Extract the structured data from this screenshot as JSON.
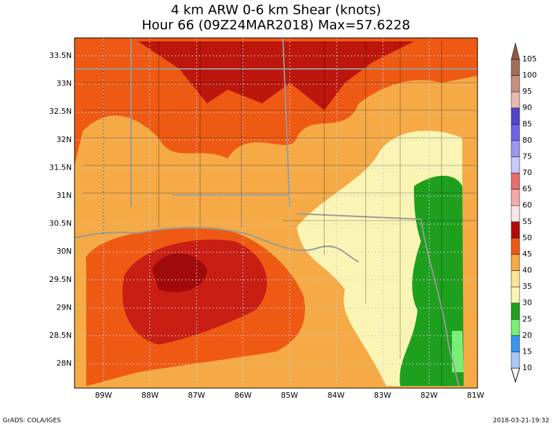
{
  "title": {
    "line1": "4 km ARW 0-6 km Shear (knots)",
    "line2": "Hour 66 (09Z24MAR2018) Max=57.6228"
  },
  "latitude_labels": [
    "33.5N",
    "33N",
    "32.5N",
    "32N",
    "31.5N",
    "31N",
    "30.5N",
    "30N",
    "29.5N",
    "29N",
    "28.5N",
    "28N"
  ],
  "longitude_labels": [
    "89W",
    "88W",
    "87W",
    "86W",
    "85W",
    "84W",
    "83W",
    "82W",
    "81W"
  ],
  "colorbar": {
    "levels": [
      10,
      15,
      20,
      25,
      30,
      35,
      40,
      45,
      50,
      55,
      60,
      65,
      70,
      75,
      80,
      85,
      90,
      95,
      100,
      105
    ],
    "colors": [
      "#aac8f5",
      "#3c96f0",
      "#78f078",
      "#1ea01e",
      "#faf5b4",
      "#fae296",
      "#f5aa46",
      "#ee5a14",
      "#b40a0a",
      "#fae6e6",
      "#f5aaaa",
      "#e66e6e",
      "#c8c8fa",
      "#a096f0",
      "#6e64e6",
      "#5046c8",
      "#e6bcb0",
      "#c89080",
      "#a06e5a",
      "#8c5a48"
    ]
  },
  "footer": {
    "left": "GrADS: COLA/IGES",
    "right": "2018-03-21-19:32"
  }
}
